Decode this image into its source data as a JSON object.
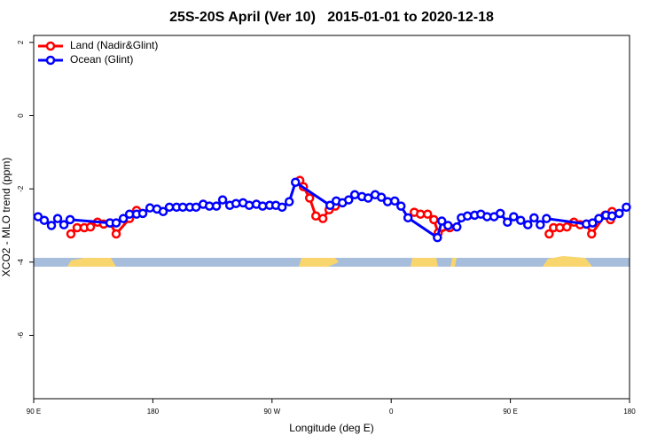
{
  "chart_data": {
    "type": "line",
    "title": "25S-20S April (Ver 10)   2015-01-01 to 2020-12-18",
    "x_label": "Longitude (deg E)",
    "y_label": "XCO2 - MLO trend (ppm)",
    "xlim": [
      90,
      540
    ],
    "xticks": [
      {
        "value": 90,
        "label": "90 E"
      },
      180,
      {
        "value": 270,
        "label": "90 W"
      },
      {
        "value": 360,
        "label": "0"
      },
      {
        "value": 450,
        "label": "90 E"
      },
      {
        "value": 540,
        "label": "180"
      }
    ],
    "ylim": [
      -7.73,
      2.19
    ],
    "yticks": [
      -6,
      -4,
      -2,
      0,
      2
    ],
    "legend": "top-left",
    "series": [
      {
        "name": "Land (Nadir&Glint)",
        "color": "#ff0000",
        "x": [
          118.1,
          122.8,
          128.2,
          132.9,
          138.2,
          142.9,
          147.6,
          152.3,
          162.4,
          167.7,
          null,
          291,
          293.7,
          298.4,
          303.1,
          308.4,
          313.1,
          317.8,
          null,
          377.4,
          382.1,
          387.5,
          392.2,
          395.5,
          404.2,
          null,
          479.3,
          482.6,
          487.3,
          492.7,
          498,
          502.7,
          507.4,
          511.4,
          521.5,
          525.6,
          526.8
        ],
        "values": [
          -3.23,
          -3.06,
          -3.06,
          -3.04,
          -2.91,
          -2.96,
          -2.93,
          -3.23,
          -2.81,
          -2.59,
          null,
          -1.77,
          -1.94,
          -2.25,
          -2.74,
          -2.81,
          -2.57,
          -2.47,
          null,
          -2.64,
          -2.69,
          -2.69,
          -2.84,
          -3.2,
          -3.06,
          null,
          -3.23,
          -3.06,
          -3.06,
          -3.04,
          -2.91,
          -2.98,
          -2.96,
          -3.23,
          -2.72,
          -2.84,
          -2.62
        ]
      },
      {
        "name": "Ocean (Glint)",
        "color": "#0000ff",
        "x": [
          93.3,
          98,
          103.4,
          108.1,
          112.8,
          117.5,
          147.6,
          152.3,
          157.7,
          162.4,
          167.7,
          172.4,
          177.8,
          183.1,
          187.8,
          192.5,
          197.9,
          202.6,
          207.9,
          212.6,
          218,
          222.7,
          228,
          232.7,
          238.1,
          242.8,
          248.1,
          252.8,
          258.2,
          262.9,
          268.2,
          272.9,
          277.6,
          283,
          287.7,
          313.8,
          318.5,
          323.2,
          327.9,
          332.5,
          337.9,
          342.6,
          347.9,
          352.6,
          357.3,
          362.7,
          367.4,
          372.7,
          394.9,
          398.2,
          402.9,
          409.6,
          413,
          417.6,
          423,
          427.7,
          432.4,
          437.7,
          442.4,
          447.8,
          452.5,
          457.8,
          463.2,
          467.9,
          472.6,
          477.3,
          507.4,
          512.1,
          516.8,
          522.2,
          526.8,
          532.2,
          537.6
        ],
        "values": [
          -2.76,
          -2.86,
          -3.0,
          -2.81,
          -2.98,
          -2.84,
          -2.93,
          -2.93,
          -2.81,
          -2.69,
          -2.69,
          -2.67,
          -2.52,
          -2.55,
          -2.62,
          -2.5,
          -2.5,
          -2.5,
          -2.5,
          -2.5,
          -2.42,
          -2.47,
          -2.47,
          -2.3,
          -2.45,
          -2.4,
          -2.38,
          -2.45,
          -2.42,
          -2.47,
          -2.45,
          -2.45,
          -2.5,
          -2.35,
          -1.82,
          -2.45,
          -2.33,
          -2.38,
          -2.3,
          -2.16,
          -2.21,
          -2.25,
          -2.16,
          -2.23,
          -2.35,
          -2.33,
          -2.47,
          -2.79,
          -3.33,
          -2.88,
          -3.0,
          -3.04,
          -2.79,
          -2.74,
          -2.72,
          -2.69,
          -2.76,
          -2.76,
          -2.67,
          -2.91,
          -2.76,
          -2.86,
          -2.98,
          -2.79,
          -2.98,
          -2.81,
          -2.96,
          -2.93,
          -2.81,
          -2.72,
          -2.74,
          -2.67,
          -2.5
        ]
      }
    ]
  }
}
